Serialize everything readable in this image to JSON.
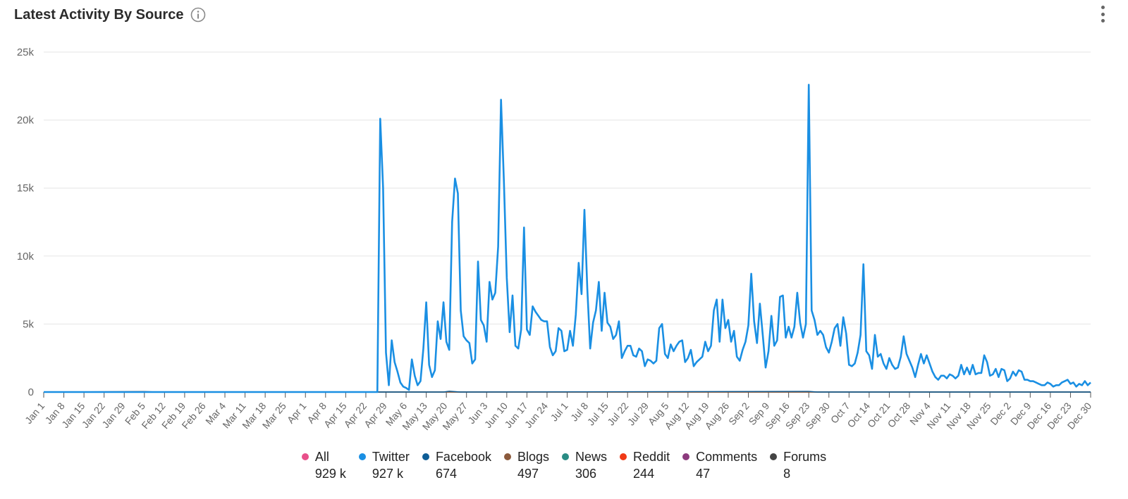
{
  "widget": {
    "title": "Latest Activity By Source"
  },
  "icons": {
    "info": "info-circle-icon",
    "menu": "more-vertical-icon"
  },
  "legend": [
    {
      "name": "All",
      "value": "929 k",
      "color": "#e8508a"
    },
    {
      "name": "Twitter",
      "value": "927 k",
      "color": "#1a8fe3"
    },
    {
      "name": "Facebook",
      "value": "674",
      "color": "#0e5d96"
    },
    {
      "name": "Blogs",
      "value": "497",
      "color": "#8b5a3c"
    },
    {
      "name": "News",
      "value": "306",
      "color": "#2a8c84"
    },
    {
      "name": "Reddit",
      "value": "244",
      "color": "#f03a17"
    },
    {
      "name": "Comments",
      "value": "47",
      "color": "#8c3a7d"
    },
    {
      "name": "Forums",
      "value": "8",
      "color": "#444444"
    }
  ],
  "chart_data": {
    "type": "line",
    "title": "Latest Activity By Source",
    "xlabel": "",
    "ylabel": "",
    "ylim": [
      0,
      25000
    ],
    "yticks": [
      0,
      5000,
      10000,
      15000,
      20000,
      25000
    ],
    "ytick_labels": [
      "0",
      "5k",
      "10k",
      "15k",
      "20k",
      "25k"
    ],
    "xlim": [
      1,
      365
    ],
    "xticks": [
      1,
      8,
      15,
      22,
      29,
      36,
      43,
      50,
      57,
      64,
      71,
      78,
      85,
      92,
      99,
      106,
      113,
      120,
      127,
      134,
      141,
      148,
      155,
      162,
      169,
      176,
      183,
      190,
      197,
      204,
      211,
      218,
      225,
      232,
      239,
      246,
      253,
      260,
      267,
      274,
      281,
      288,
      295,
      302,
      309,
      316,
      323,
      330,
      337,
      344,
      351,
      358,
      365
    ],
    "xtick_labels": [
      "Jan 1",
      "Jan 8",
      "Jan 15",
      "Jan 22",
      "Jan 29",
      "Feb 5",
      "Feb 12",
      "Feb 19",
      "Feb 26",
      "Mar 4",
      "Mar 11",
      "Mar 18",
      "Mar 25",
      "Apr 1",
      "Apr 8",
      "Apr 15",
      "Apr 22",
      "Apr 29",
      "May 6",
      "May 13",
      "May 20",
      "May 27",
      "Jun 3",
      "Jun 10",
      "Jun 17",
      "Jun 24",
      "Jul 1",
      "Jul 8",
      "Jul 15",
      "Jul 22",
      "Jul 29",
      "Aug 5",
      "Aug 12",
      "Aug 19",
      "Aug 26",
      "Sep 2",
      "Sep 9",
      "Sep 16",
      "Sep 23",
      "Sep 30",
      "Oct 7",
      "Oct 14",
      "Oct 21",
      "Oct 28",
      "Nov 4",
      "Nov 11",
      "Nov 18",
      "Nov 25",
      "Dec 2",
      "Dec 9",
      "Dec 16",
      "Dec 23",
      "Dec 30"
    ],
    "grid": true,
    "legend_position": "bottom",
    "series": [
      {
        "name": "Twitter",
        "color": "#1a8fe3",
        "points": [
          [
            1,
            0
          ],
          [
            117,
            0
          ],
          [
            118,
            20100
          ],
          [
            119,
            15000
          ],
          [
            120,
            2900
          ],
          [
            121,
            500
          ],
          [
            122,
            3800
          ],
          [
            123,
            2200
          ],
          [
            124,
            1500
          ],
          [
            125,
            700
          ],
          [
            126,
            400
          ],
          [
            127,
            300
          ],
          [
            128,
            150
          ],
          [
            129,
            2400
          ],
          [
            130,
            1200
          ],
          [
            131,
            500
          ],
          [
            132,
            800
          ],
          [
            133,
            3200
          ],
          [
            134,
            6600
          ],
          [
            135,
            2000
          ],
          [
            136,
            1100
          ],
          [
            137,
            1600
          ],
          [
            138,
            5200
          ],
          [
            139,
            3900
          ],
          [
            140,
            6600
          ],
          [
            141,
            3700
          ],
          [
            142,
            3100
          ],
          [
            143,
            12500
          ],
          [
            144,
            15700
          ],
          [
            145,
            14600
          ],
          [
            146,
            6000
          ],
          [
            147,
            4100
          ],
          [
            148,
            3800
          ],
          [
            149,
            3600
          ],
          [
            150,
            2100
          ],
          [
            151,
            2400
          ],
          [
            152,
            9600
          ],
          [
            153,
            5300
          ],
          [
            154,
            4900
          ],
          [
            155,
            3700
          ],
          [
            156,
            8100
          ],
          [
            157,
            6800
          ],
          [
            158,
            7300
          ],
          [
            159,
            10700
          ],
          [
            160,
            21500
          ],
          [
            161,
            15500
          ],
          [
            162,
            8400
          ],
          [
            163,
            4400
          ],
          [
            164,
            7100
          ],
          [
            165,
            3400
          ],
          [
            166,
            3200
          ],
          [
            167,
            4600
          ],
          [
            168,
            12100
          ],
          [
            169,
            4600
          ],
          [
            170,
            4200
          ],
          [
            171,
            6300
          ],
          [
            172,
            5900
          ],
          [
            173,
            5600
          ],
          [
            174,
            5300
          ],
          [
            175,
            5200
          ],
          [
            176,
            5200
          ],
          [
            177,
            3300
          ],
          [
            178,
            2700
          ],
          [
            179,
            3000
          ],
          [
            180,
            4700
          ],
          [
            181,
            4500
          ],
          [
            182,
            3000
          ],
          [
            183,
            3100
          ],
          [
            184,
            4500
          ],
          [
            185,
            3400
          ],
          [
            186,
            5700
          ],
          [
            187,
            9500
          ],
          [
            188,
            7200
          ],
          [
            189,
            13400
          ],
          [
            190,
            7600
          ],
          [
            191,
            3200
          ],
          [
            192,
            5100
          ],
          [
            193,
            6000
          ],
          [
            194,
            8100
          ],
          [
            195,
            4500
          ],
          [
            196,
            7300
          ],
          [
            197,
            5100
          ],
          [
            198,
            4800
          ],
          [
            199,
            3900
          ],
          [
            200,
            4200
          ],
          [
            201,
            5200
          ],
          [
            202,
            2500
          ],
          [
            203,
            3000
          ],
          [
            204,
            3400
          ],
          [
            205,
            3400
          ],
          [
            206,
            2700
          ],
          [
            207,
            2600
          ],
          [
            208,
            3200
          ],
          [
            209,
            3000
          ],
          [
            210,
            1900
          ],
          [
            211,
            2400
          ],
          [
            212,
            2300
          ],
          [
            213,
            2100
          ],
          [
            214,
            2300
          ],
          [
            215,
            4700
          ],
          [
            216,
            5000
          ],
          [
            217,
            2800
          ],
          [
            218,
            2500
          ],
          [
            219,
            3500
          ],
          [
            220,
            3000
          ],
          [
            221,
            3400
          ],
          [
            222,
            3700
          ],
          [
            223,
            3800
          ],
          [
            224,
            2200
          ],
          [
            225,
            2500
          ],
          [
            226,
            3100
          ],
          [
            227,
            1900
          ],
          [
            228,
            2200
          ],
          [
            229,
            2400
          ],
          [
            230,
            2600
          ],
          [
            231,
            3700
          ],
          [
            232,
            3000
          ],
          [
            233,
            3400
          ],
          [
            234,
            6000
          ],
          [
            235,
            6800
          ],
          [
            236,
            3700
          ],
          [
            237,
            6800
          ],
          [
            238,
            4700
          ],
          [
            239,
            5300
          ],
          [
            240,
            3700
          ],
          [
            241,
            4500
          ],
          [
            242,
            2600
          ],
          [
            243,
            2300
          ],
          [
            244,
            3100
          ],
          [
            245,
            3700
          ],
          [
            246,
            4900
          ],
          [
            247,
            8700
          ],
          [
            248,
            5200
          ],
          [
            249,
            3600
          ],
          [
            250,
            6500
          ],
          [
            251,
            4200
          ],
          [
            252,
            1800
          ],
          [
            253,
            3000
          ],
          [
            254,
            5600
          ],
          [
            255,
            3400
          ],
          [
            256,
            3800
          ],
          [
            257,
            7000
          ],
          [
            258,
            7100
          ],
          [
            259,
            4000
          ],
          [
            260,
            4800
          ],
          [
            261,
            4000
          ],
          [
            262,
            4800
          ],
          [
            263,
            7300
          ],
          [
            264,
            5100
          ],
          [
            265,
            4000
          ],
          [
            266,
            5000
          ],
          [
            267,
            22600
          ],
          [
            268,
            6000
          ],
          [
            269,
            5300
          ],
          [
            270,
            4200
          ],
          [
            271,
            4500
          ],
          [
            272,
            4200
          ],
          [
            273,
            3300
          ],
          [
            274,
            2900
          ],
          [
            275,
            3700
          ],
          [
            276,
            4700
          ],
          [
            277,
            5000
          ],
          [
            278,
            3400
          ],
          [
            279,
            5500
          ],
          [
            280,
            4300
          ],
          [
            281,
            2000
          ],
          [
            282,
            1900
          ],
          [
            283,
            2100
          ],
          [
            284,
            2900
          ],
          [
            285,
            4200
          ],
          [
            286,
            9400
          ],
          [
            287,
            3000
          ],
          [
            288,
            2700
          ],
          [
            289,
            1700
          ],
          [
            290,
            4200
          ],
          [
            291,
            2600
          ],
          [
            292,
            2800
          ],
          [
            293,
            2100
          ],
          [
            294,
            1700
          ],
          [
            295,
            2500
          ],
          [
            296,
            2000
          ],
          [
            297,
            1700
          ],
          [
            298,
            1800
          ],
          [
            299,
            2600
          ],
          [
            300,
            4100
          ],
          [
            301,
            2800
          ],
          [
            302,
            2300
          ],
          [
            303,
            1800
          ],
          [
            304,
            1100
          ],
          [
            305,
            2000
          ],
          [
            306,
            2800
          ],
          [
            307,
            2100
          ],
          [
            308,
            2700
          ],
          [
            309,
            2100
          ],
          [
            310,
            1500
          ],
          [
            311,
            1100
          ],
          [
            312,
            900
          ],
          [
            313,
            1200
          ],
          [
            314,
            1200
          ],
          [
            315,
            1000
          ],
          [
            316,
            1300
          ],
          [
            317,
            1200
          ],
          [
            318,
            1000
          ],
          [
            319,
            1200
          ],
          [
            320,
            2000
          ],
          [
            321,
            1300
          ],
          [
            322,
            1800
          ],
          [
            323,
            1300
          ],
          [
            324,
            2000
          ],
          [
            325,
            1300
          ],
          [
            326,
            1400
          ],
          [
            327,
            1400
          ],
          [
            328,
            2700
          ],
          [
            329,
            2200
          ],
          [
            330,
            1200
          ],
          [
            331,
            1300
          ],
          [
            332,
            1700
          ],
          [
            333,
            1100
          ],
          [
            334,
            1700
          ],
          [
            335,
            1600
          ],
          [
            336,
            800
          ],
          [
            337,
            1000
          ],
          [
            338,
            1500
          ],
          [
            339,
            1200
          ],
          [
            340,
            1600
          ],
          [
            341,
            1500
          ],
          [
            342,
            900
          ],
          [
            343,
            900
          ],
          [
            344,
            800
          ],
          [
            345,
            800
          ],
          [
            346,
            700
          ],
          [
            347,
            600
          ],
          [
            348,
            500
          ],
          [
            349,
            500
          ],
          [
            350,
            700
          ],
          [
            351,
            600
          ],
          [
            352,
            400
          ],
          [
            353,
            500
          ],
          [
            354,
            500
          ],
          [
            355,
            700
          ],
          [
            356,
            800
          ],
          [
            357,
            900
          ],
          [
            358,
            600
          ],
          [
            359,
            700
          ],
          [
            360,
            400
          ],
          [
            361,
            600
          ],
          [
            362,
            500
          ],
          [
            363,
            800
          ],
          [
            364,
            500
          ],
          [
            365,
            700
          ]
        ]
      },
      {
        "name": "Facebook",
        "color": "#0e5d96",
        "points": [
          [
            1,
            0
          ],
          [
            140,
            0
          ],
          [
            142,
            60
          ],
          [
            146,
            0
          ],
          [
            267,
            50
          ],
          [
            270,
            0
          ],
          [
            365,
            0
          ]
        ]
      },
      {
        "name": "Blogs",
        "color": "#8b5a3c",
        "points": [
          [
            1,
            0
          ],
          [
            36,
            40
          ],
          [
            40,
            0
          ],
          [
            365,
            0
          ]
        ]
      },
      {
        "name": "Forums",
        "color": "#444444",
        "points": [
          [
            1,
            0
          ],
          [
            365,
            0
          ]
        ]
      }
    ]
  }
}
